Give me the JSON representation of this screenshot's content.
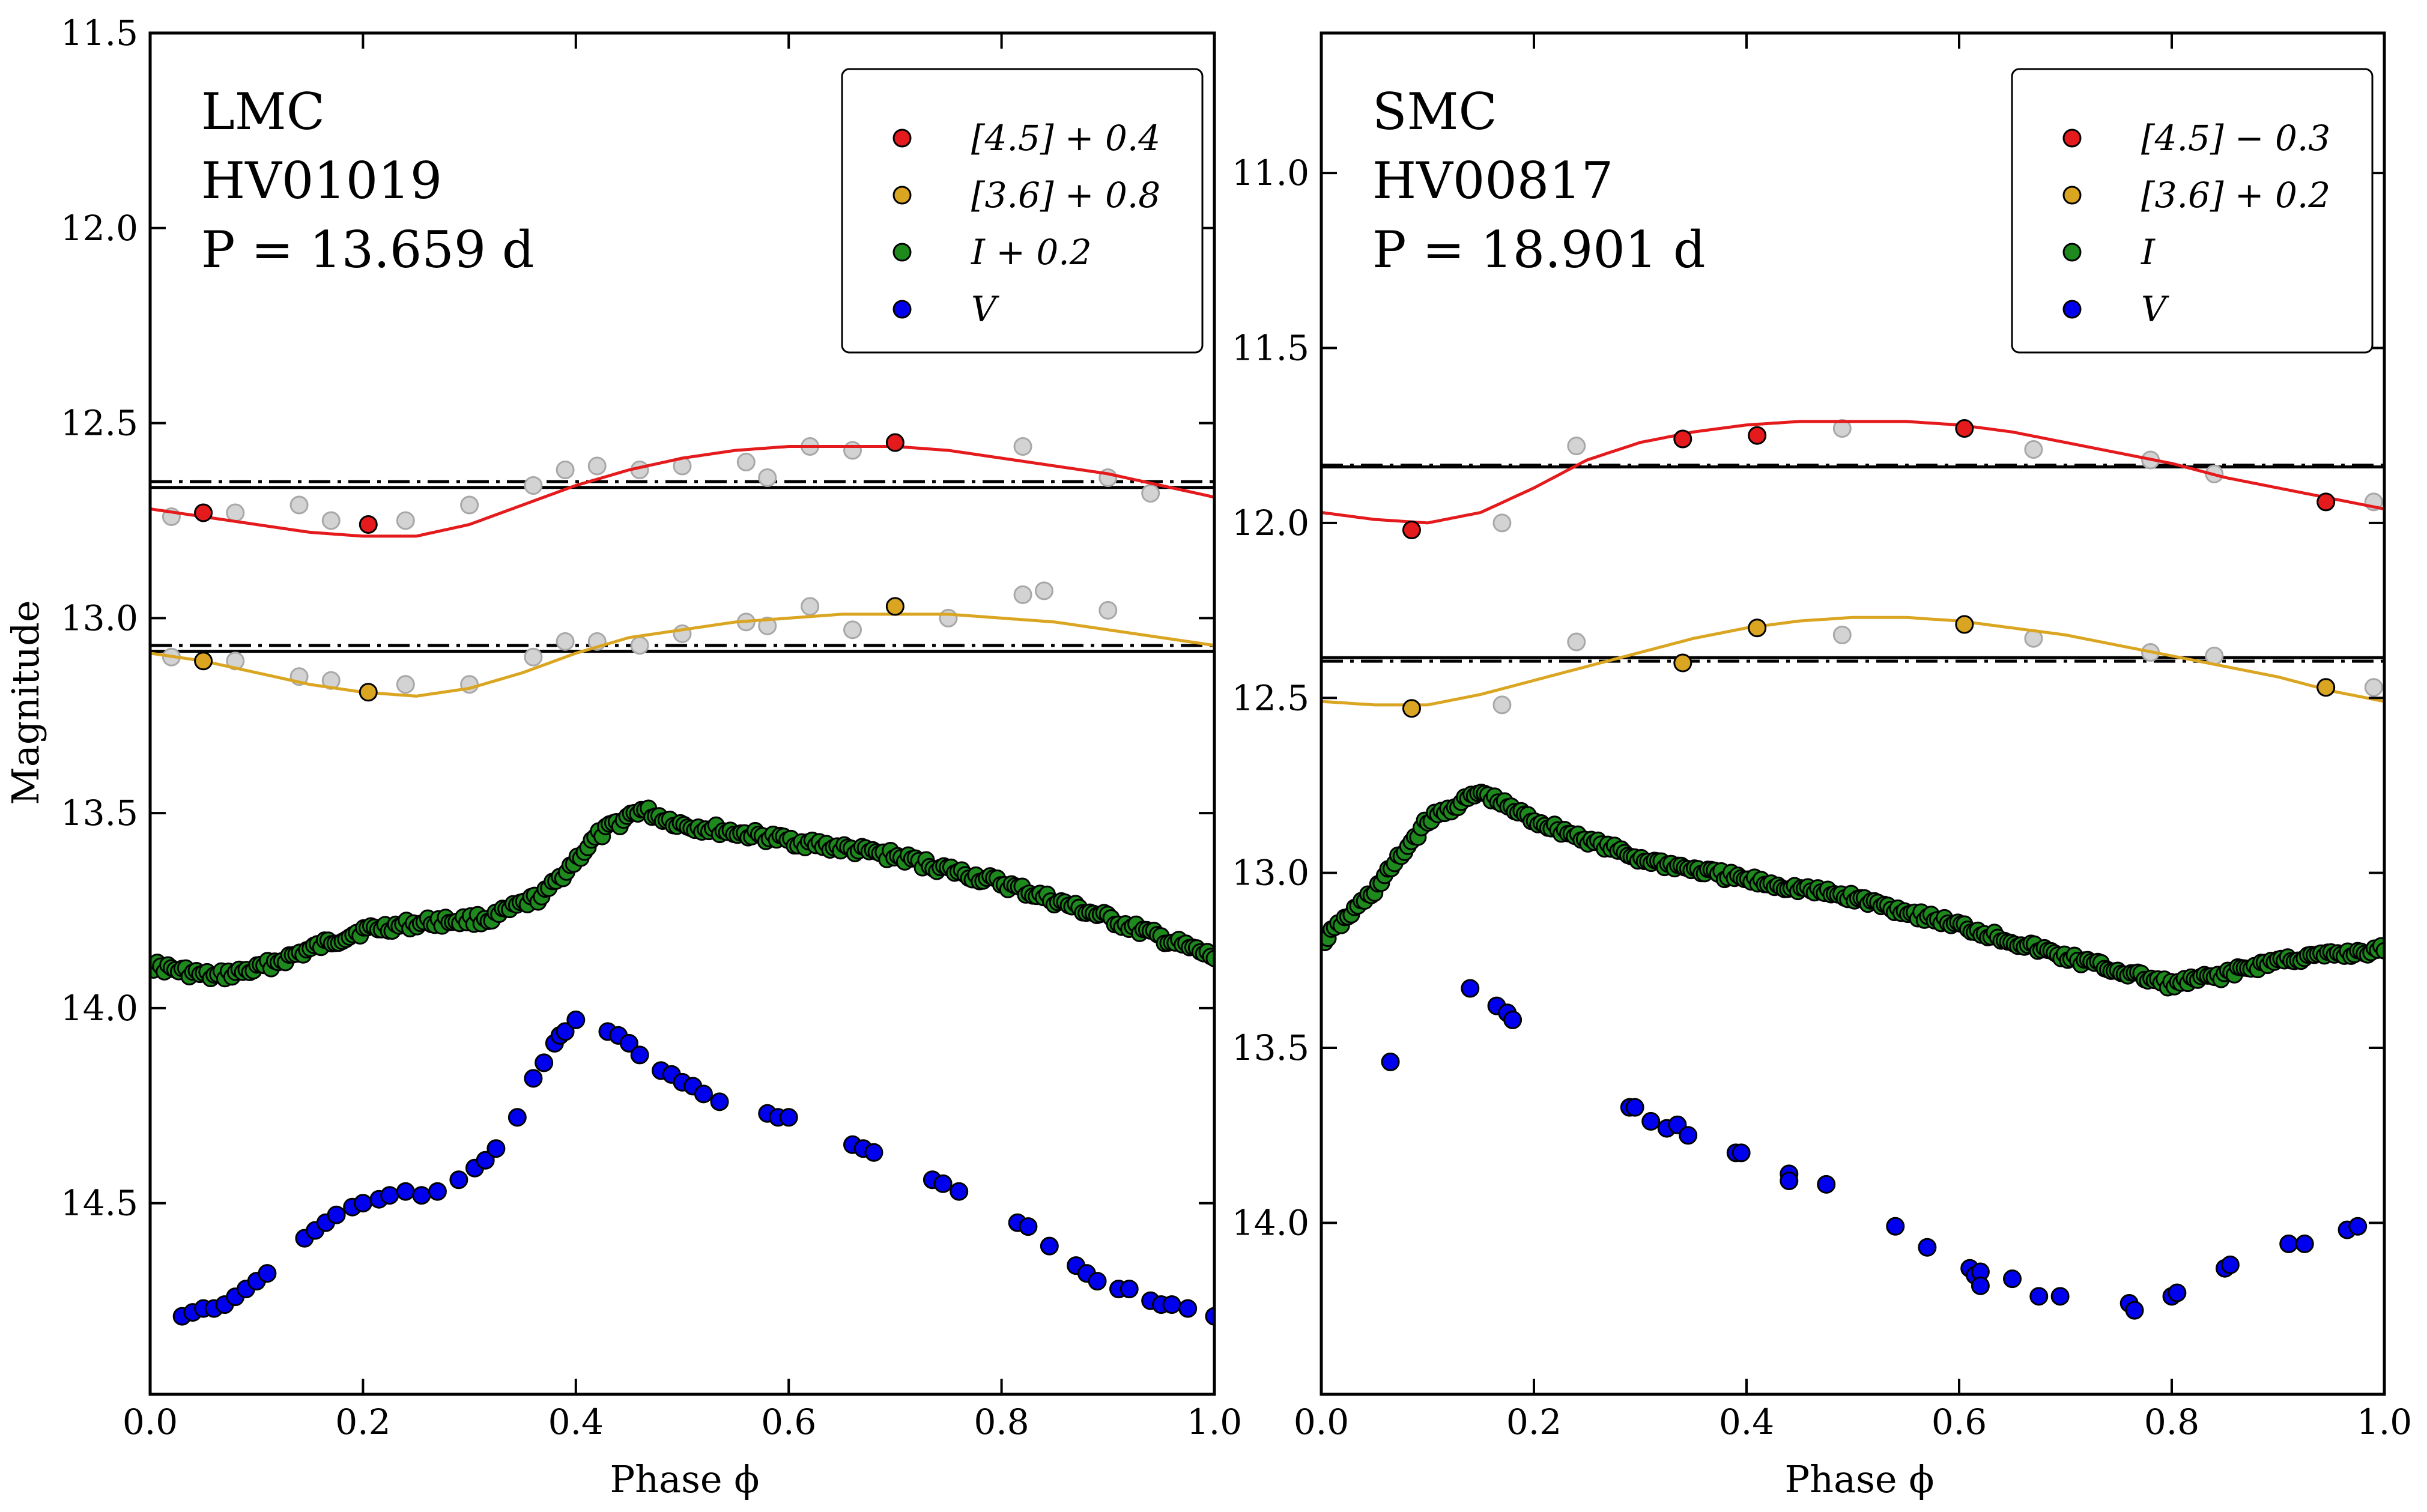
{
  "figure": {
    "ylabel": "Magnitude",
    "xlabel": "Phase ϕ"
  },
  "chart_data": [
    {
      "type": "scatter",
      "panel": "left",
      "galaxy": "LMC",
      "star": "HV01019",
      "period_label": "P = 13.659 d",
      "xlim": [
        0.0,
        1.0
      ],
      "ylim": [
        14.99,
        11.5
      ],
      "xticks": [
        0.0,
        0.2,
        0.4,
        0.6,
        0.8,
        1.0
      ],
      "xtick_labels": [
        "0.0",
        "0.2",
        "0.4",
        "0.6",
        "0.8",
        "1.0"
      ],
      "yticks": [
        11.5,
        12.0,
        12.5,
        13.0,
        13.5,
        14.0,
        14.5
      ],
      "ytick_labels": [
        "11.5",
        "12.0",
        "12.5",
        "13.0",
        "13.5",
        "14.0",
        "14.5"
      ],
      "legend": [
        {
          "label": "[4.5] + 0.4",
          "color": "#e41a1c"
        },
        {
          "label": "[3.6] + 0.8",
          "color": "#daa520"
        },
        {
          "label": "I + 0.2",
          "color": "#1e8a1e"
        },
        {
          "label": "V",
          "color": "#0000ee"
        }
      ],
      "hlines": [
        {
          "y": 12.65,
          "style": "dashdot"
        },
        {
          "y": 12.665,
          "style": "solid"
        },
        {
          "y": 13.07,
          "style": "dashdot"
        },
        {
          "y": 13.085,
          "style": "solid"
        }
      ],
      "curves": [
        {
          "name": "[4.5] fit",
          "color": "#e41a1c",
          "x": [
            0.0,
            0.05,
            0.1,
            0.15,
            0.2,
            0.25,
            0.3,
            0.35,
            0.4,
            0.45,
            0.5,
            0.55,
            0.6,
            0.65,
            0.7,
            0.75,
            0.8,
            0.85,
            0.9,
            0.95,
            1.0
          ],
          "y": [
            12.72,
            12.74,
            12.76,
            12.78,
            12.79,
            12.79,
            12.76,
            12.71,
            12.66,
            12.62,
            12.59,
            12.57,
            12.56,
            12.56,
            12.56,
            12.57,
            12.59,
            12.61,
            12.63,
            12.66,
            12.69
          ]
        },
        {
          "name": "[3.6] fit",
          "color": "#daa520",
          "x": [
            0.0,
            0.05,
            0.1,
            0.15,
            0.2,
            0.25,
            0.3,
            0.35,
            0.4,
            0.45,
            0.5,
            0.55,
            0.6,
            0.65,
            0.7,
            0.75,
            0.8,
            0.85,
            0.9,
            0.95,
            1.0
          ],
          "y": [
            13.09,
            13.11,
            13.14,
            13.17,
            13.19,
            13.2,
            13.18,
            13.14,
            13.09,
            13.05,
            13.03,
            13.01,
            13.0,
            12.99,
            12.99,
            12.99,
            13.0,
            13.01,
            13.03,
            13.05,
            13.07
          ]
        }
      ],
      "series": [
        {
          "name": "[4.5] gray",
          "color": "#d3d3d3",
          "x": [
            0.02,
            0.08,
            0.14,
            0.17,
            0.24,
            0.3,
            0.36,
            0.39,
            0.42,
            0.46,
            0.5,
            0.56,
            0.58,
            0.62,
            0.66,
            0.82,
            0.9,
            0.94
          ],
          "y": [
            12.74,
            12.73,
            12.71,
            12.75,
            12.75,
            12.71,
            12.66,
            12.62,
            12.61,
            12.62,
            12.61,
            12.6,
            12.64,
            12.56,
            12.57,
            12.56,
            12.64,
            12.68
          ]
        },
        {
          "name": "[4.5] + 0.4",
          "color": "#e41a1c",
          "x": [
            0.05,
            0.205,
            0.7
          ],
          "y": [
            12.73,
            12.76,
            12.55
          ]
        },
        {
          "name": "[3.6] gray",
          "color": "#d3d3d3",
          "x": [
            0.02,
            0.08,
            0.14,
            0.17,
            0.24,
            0.3,
            0.36,
            0.39,
            0.42,
            0.46,
            0.5,
            0.56,
            0.58,
            0.62,
            0.66,
            0.75,
            0.82,
            0.84,
            0.9
          ],
          "y": [
            13.1,
            13.11,
            13.15,
            13.16,
            13.17,
            13.17,
            13.1,
            13.06,
            13.06,
            13.07,
            13.04,
            13.01,
            13.02,
            12.97,
            13.03,
            13.0,
            12.94,
            12.93,
            12.98
          ]
        },
        {
          "name": "[3.6] + 0.8",
          "color": "#daa520",
          "x": [
            0.05,
            0.205,
            0.7
          ],
          "y": [
            13.11,
            13.19,
            12.97
          ]
        },
        {
          "name": "I + 0.2",
          "color": "#1e8a1e",
          "anchor_x": [
            0.0,
            0.06,
            0.1,
            0.14,
            0.2,
            0.26,
            0.32,
            0.37,
            0.42,
            0.46,
            0.5,
            0.6,
            0.7,
            0.8,
            0.9,
            1.0
          ],
          "anchor_y": [
            13.89,
            13.92,
            13.9,
            13.86,
            13.8,
            13.78,
            13.77,
            13.71,
            13.56,
            13.49,
            13.53,
            13.57,
            13.61,
            13.68,
            13.77,
            13.87
          ],
          "count": 300
        },
        {
          "name": "V",
          "color": "#0000ee",
          "x": [
            0.03,
            0.04,
            0.05,
            0.06,
            0.07,
            0.08,
            0.09,
            0.1,
            0.11,
            0.145,
            0.155,
            0.165,
            0.175,
            0.19,
            0.2,
            0.215,
            0.225,
            0.24,
            0.255,
            0.27,
            0.29,
            0.305,
            0.315,
            0.325,
            0.345,
            0.36,
            0.37,
            0.38,
            0.385,
            0.39,
            0.4,
            0.43,
            0.44,
            0.45,
            0.46,
            0.48,
            0.49,
            0.5,
            0.51,
            0.52,
            0.535,
            0.58,
            0.59,
            0.6,
            0.66,
            0.67,
            0.68,
            0.735,
            0.745,
            0.76,
            0.815,
            0.825,
            0.845,
            0.87,
            0.88,
            0.89,
            0.91,
            0.92,
            0.94,
            0.95,
            0.96,
            0.975,
            1.0
          ],
          "y": [
            14.79,
            14.78,
            14.77,
            14.77,
            14.76,
            14.74,
            14.72,
            14.7,
            14.68,
            14.59,
            14.57,
            14.55,
            14.53,
            14.51,
            14.5,
            14.49,
            14.48,
            14.47,
            14.48,
            14.47,
            14.44,
            14.41,
            14.39,
            14.36,
            14.28,
            14.18,
            14.14,
            14.09,
            14.07,
            14.06,
            14.03,
            14.06,
            14.07,
            14.09,
            14.12,
            14.16,
            14.17,
            14.19,
            14.2,
            14.22,
            14.24,
            14.27,
            14.28,
            14.28,
            14.35,
            14.36,
            14.37,
            14.44,
            14.45,
            14.47,
            14.55,
            14.56,
            14.61,
            14.66,
            14.68,
            14.7,
            14.72,
            14.72,
            14.75,
            14.76,
            14.76,
            14.77,
            14.79
          ]
        }
      ]
    },
    {
      "type": "scatter",
      "panel": "right",
      "galaxy": "SMC",
      "star": "HV00817",
      "period_label": "P = 18.901 d",
      "xlim": [
        0.0,
        1.0
      ],
      "ylim": [
        14.49,
        10.6
      ],
      "xticks": [
        0.0,
        0.2,
        0.4,
        0.6,
        0.8,
        1.0
      ],
      "xtick_labels": [
        "0.0",
        "0.2",
        "0.4",
        "0.6",
        "0.8",
        "1.0"
      ],
      "yticks": [
        11.0,
        11.5,
        12.0,
        12.5,
        13.0,
        13.5,
        14.0
      ],
      "ytick_labels": [
        "11.0",
        "11.5",
        "12.0",
        "12.5",
        "13.0",
        "13.5",
        "14.0"
      ],
      "legend": [
        {
          "label": "[4.5] − 0.3",
          "color": "#e41a1c"
        },
        {
          "label": "[3.6] + 0.2",
          "color": "#daa520"
        },
        {
          "label": "I",
          "color": "#1e8a1e"
        },
        {
          "label": "V",
          "color": "#0000ee"
        }
      ],
      "hlines": [
        {
          "y": 11.835,
          "style": "dashdot"
        },
        {
          "y": 11.84,
          "style": "solid"
        },
        {
          "y": 12.395,
          "style": "dashdot"
        },
        {
          "y": 12.385,
          "style": "solid"
        }
      ],
      "curves": [
        {
          "name": "[4.5] fit",
          "color": "#e41a1c",
          "x": [
            0.0,
            0.05,
            0.1,
            0.15,
            0.2,
            0.25,
            0.3,
            0.35,
            0.4,
            0.45,
            0.5,
            0.55,
            0.6,
            0.65,
            0.7,
            0.75,
            0.8,
            0.85,
            0.9,
            0.95,
            1.0
          ],
          "y": [
            11.97,
            11.99,
            12.0,
            11.97,
            11.9,
            11.82,
            11.77,
            11.74,
            11.72,
            11.71,
            11.71,
            11.71,
            11.72,
            11.74,
            11.77,
            11.8,
            11.83,
            11.87,
            11.9,
            11.93,
            11.96
          ]
        },
        {
          "name": "[3.6] fit",
          "color": "#daa520",
          "x": [
            0.0,
            0.05,
            0.1,
            0.15,
            0.2,
            0.25,
            0.3,
            0.35,
            0.4,
            0.45,
            0.5,
            0.55,
            0.6,
            0.65,
            0.7,
            0.75,
            0.8,
            0.85,
            0.9,
            0.95,
            1.0
          ],
          "y": [
            12.51,
            12.52,
            12.52,
            12.49,
            12.45,
            12.41,
            12.37,
            12.33,
            12.3,
            12.28,
            12.27,
            12.27,
            12.28,
            12.3,
            12.32,
            12.35,
            12.38,
            12.41,
            12.44,
            12.48,
            12.51
          ]
        },
        {
          "name": "I envelope",
          "color": "none",
          "x": [],
          "y": []
        }
      ],
      "series": [
        {
          "name": "[4.5] gray",
          "color": "#d3d3d3",
          "x": [
            0.17,
            0.24,
            0.49,
            0.67,
            0.78,
            0.84,
            0.99
          ],
          "y": [
            12.0,
            11.78,
            11.73,
            11.79,
            11.82,
            11.86,
            11.94
          ]
        },
        {
          "name": "[4.5] − 0.3",
          "color": "#e41a1c",
          "x": [
            0.085,
            0.34,
            0.41,
            0.605,
            0.945
          ],
          "y": [
            12.02,
            11.76,
            11.75,
            11.73,
            11.94
          ]
        },
        {
          "name": "[3.6] gray",
          "color": "#d3d3d3",
          "x": [
            0.17,
            0.24,
            0.49,
            0.67,
            0.78,
            0.84,
            0.99
          ],
          "y": [
            12.52,
            12.34,
            12.32,
            12.33,
            12.37,
            12.38,
            12.47
          ]
        },
        {
          "name": "[3.6] + 0.2",
          "color": "#daa520",
          "x": [
            0.085,
            0.34,
            0.41,
            0.605,
            0.945
          ],
          "y": [
            12.53,
            12.4,
            12.3,
            12.29,
            12.47
          ]
        },
        {
          "name": "I",
          "color": "#1e8a1e",
          "anchor_x": [
            0.0,
            0.05,
            0.1,
            0.15,
            0.2,
            0.3,
            0.4,
            0.5,
            0.6,
            0.7,
            0.8,
            0.85,
            0.9,
            1.0
          ],
          "anchor_y": [
            13.2,
            13.05,
            12.85,
            12.77,
            12.85,
            12.96,
            13.02,
            13.07,
            13.15,
            13.24,
            13.32,
            13.29,
            13.25,
            13.22
          ],
          "count": 320
        },
        {
          "name": "V",
          "color": "#0000ee",
          "x": [
            0.065,
            0.14,
            0.165,
            0.175,
            0.18,
            0.29,
            0.295,
            0.31,
            0.325,
            0.335,
            0.345,
            0.39,
            0.395,
            0.44,
            0.44,
            0.475,
            0.54,
            0.57,
            0.61,
            0.615,
            0.62,
            0.62,
            0.65,
            0.675,
            0.695,
            0.76,
            0.765,
            0.8,
            0.805,
            0.85,
            0.855,
            0.91,
            0.925,
            0.965,
            0.975
          ],
          "y": [
            13.54,
            13.33,
            13.38,
            13.4,
            13.42,
            13.67,
            13.67,
            13.71,
            13.73,
            13.72,
            13.75,
            13.8,
            13.8,
            13.86,
            13.88,
            13.89,
            14.01,
            14.07,
            14.13,
            14.15,
            14.14,
            14.18,
            14.16,
            14.21,
            14.21,
            14.23,
            14.25,
            14.21,
            14.2,
            14.13,
            14.12,
            14.06,
            14.06,
            14.02,
            14.01
          ]
        }
      ]
    }
  ]
}
